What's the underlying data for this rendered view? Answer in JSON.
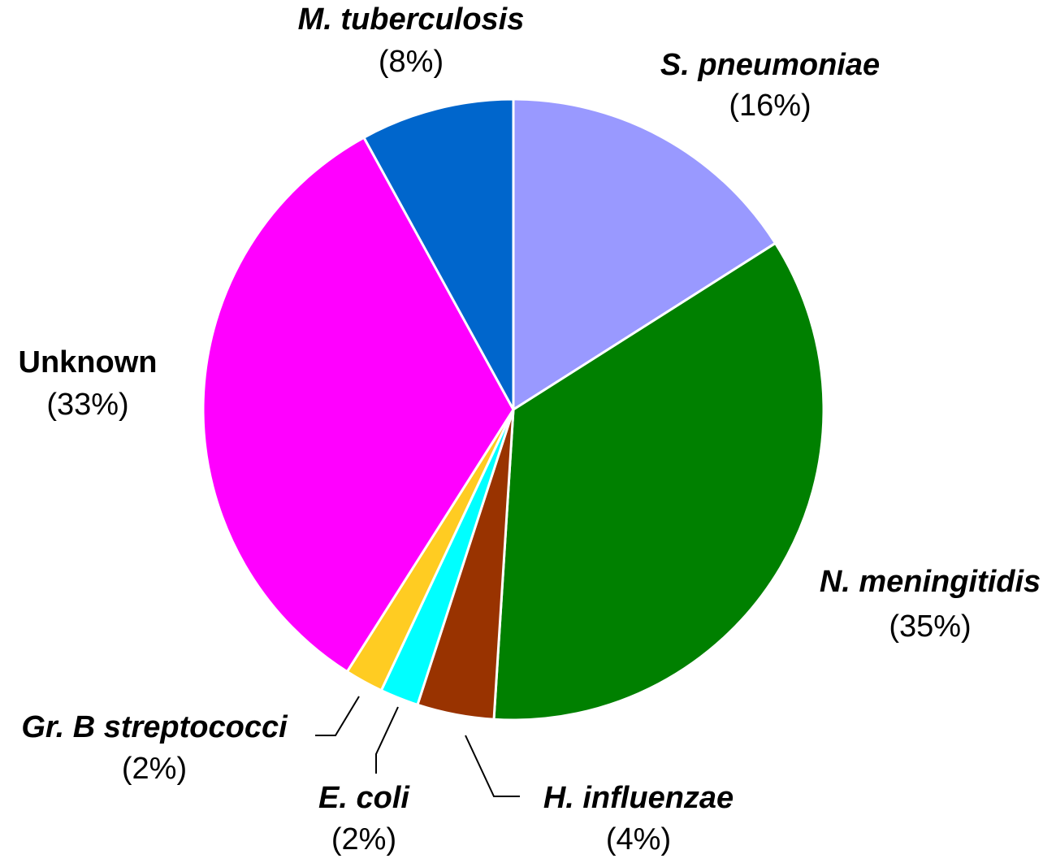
{
  "chart_data": {
    "type": "pie",
    "start_angle": "12 o'clock",
    "direction": "clockwise",
    "legend": "none",
    "slices": [
      {
        "label": "S. pneumoniae",
        "value": 16,
        "value_label": "(16%)",
        "color": "#9999FF",
        "italic": true
      },
      {
        "label": "N. meningitidis",
        "value": 35,
        "value_label": "(35%)",
        "color": "#008000",
        "italic": true
      },
      {
        "label": "H. influenzae",
        "value": 4,
        "value_label": "(4%)",
        "color": "#993300",
        "italic": true
      },
      {
        "label": "E. coli",
        "value": 2,
        "value_label": "(2%)",
        "color": "#00FFFF",
        "italic": true
      },
      {
        "label": "Gr. B streptococci",
        "value": 2,
        "value_label": "(2%)",
        "color": "#FFCC22",
        "italic": true
      },
      {
        "label": "Unknown",
        "value": 33,
        "value_label": "(33%)",
        "color": "#FF00FF",
        "italic": false
      },
      {
        "label": "M. tuberculosis",
        "value": 8,
        "value_label": "(8%)",
        "color": "#0066CC",
        "italic": true
      }
    ]
  }
}
